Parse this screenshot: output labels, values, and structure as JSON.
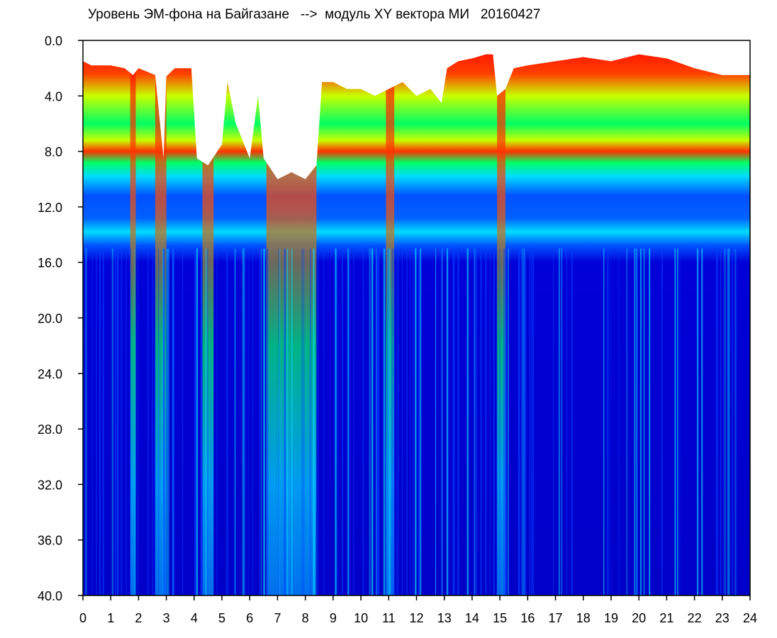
{
  "chart_data": {
    "type": "heatmap",
    "title": "Уровень ЭМ-фона на Байгазане   -->  модуль XY вектора МИ   20160427",
    "xlabel": "",
    "ylabel": "",
    "x_ticks": [
      "0",
      "1",
      "2",
      "3",
      "4",
      "5",
      "6",
      "7",
      "8",
      "9",
      "10",
      "11",
      "12",
      "13",
      "14",
      "15",
      "16",
      "17",
      "18",
      "19",
      "20",
      "21",
      "22",
      "23",
      "24"
    ],
    "y_ticks": [
      "0.0",
      "4.0",
      "8.0",
      "12.0",
      "16.0",
      "20.0",
      "24.0",
      "28.0",
      "32.0",
      "36.0",
      "40.0"
    ],
    "xlim": [
      0,
      24
    ],
    "ylim": [
      0,
      40
    ],
    "y_inverted": true,
    "colormap": [
      "#0000c8",
      "#0050ff",
      "#00dcff",
      "#00ff64",
      "#c8ff00",
      "#ffff00",
      "#ff5000",
      "#ff0000"
    ],
    "background_no_data": "#ffffff",
    "top_edge": [
      [
        0,
        1.5
      ],
      [
        0.3,
        1.8
      ],
      [
        1.0,
        1.8
      ],
      [
        1.5,
        2.0
      ],
      [
        1.8,
        2.5
      ],
      [
        2.0,
        2.0
      ],
      [
        2.6,
        2.5
      ],
      [
        2.9,
        8.5
      ],
      [
        3.0,
        2.6
      ],
      [
        3.3,
        2.0
      ],
      [
        3.9,
        2.0
      ],
      [
        4.1,
        8.5
      ],
      [
        4.5,
        9.0
      ],
      [
        5.0,
        7.5
      ],
      [
        5.2,
        3.0
      ],
      [
        5.5,
        6.0
      ],
      [
        6.0,
        8.5
      ],
      [
        6.3,
        4.0
      ],
      [
        6.5,
        8.5
      ],
      [
        7.0,
        10.0
      ],
      [
        7.5,
        9.5
      ],
      [
        8.0,
        10.0
      ],
      [
        8.4,
        9.0
      ],
      [
        8.6,
        3.0
      ],
      [
        9.0,
        3.0
      ],
      [
        9.5,
        3.5
      ],
      [
        10.0,
        3.5
      ],
      [
        10.5,
        4.0
      ],
      [
        11.0,
        3.5
      ],
      [
        11.5,
        3.0
      ],
      [
        12.0,
        4.0
      ],
      [
        12.5,
        3.5
      ],
      [
        12.9,
        4.5
      ],
      [
        13.1,
        2.0
      ],
      [
        13.5,
        1.5
      ],
      [
        14.0,
        1.3
      ],
      [
        14.5,
        1.0
      ],
      [
        14.75,
        1.0
      ],
      [
        14.9,
        4.0
      ],
      [
        15.2,
        3.5
      ],
      [
        15.5,
        2.0
      ],
      [
        16.0,
        1.8
      ],
      [
        17.0,
        1.5
      ],
      [
        18.0,
        1.2
      ],
      [
        19.0,
        1.5
      ],
      [
        20.0,
        1.0
      ],
      [
        21.0,
        1.3
      ],
      [
        22.0,
        2.0
      ],
      [
        23.0,
        2.5
      ],
      [
        24.0,
        2.5
      ]
    ],
    "bands": {
      "yellow_green_center": 5.0,
      "red_band": 7.5,
      "cyan_band_top": 8.5,
      "cyan_band_lower": 13.5,
      "blue_floor": 16.0
    },
    "disturbed_intervals": [
      [
        1.7,
        1.9
      ],
      [
        2.6,
        3.0
      ],
      [
        4.3,
        4.7
      ],
      [
        6.6,
        8.4
      ],
      [
        10.9,
        11.2
      ],
      [
        14.9,
        15.2
      ]
    ]
  }
}
